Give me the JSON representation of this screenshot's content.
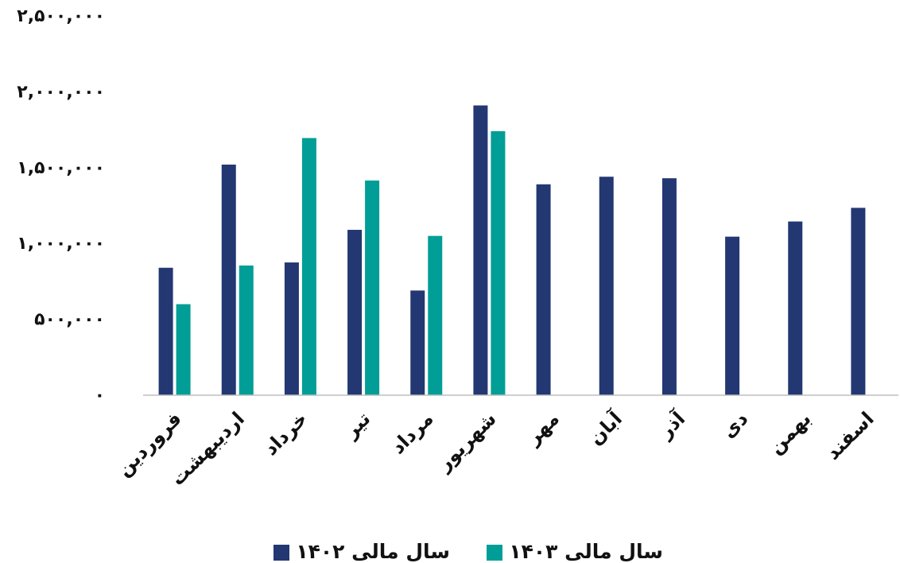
{
  "chart_data": {
    "type": "bar",
    "title": "",
    "xlabel": "",
    "ylabel": "",
    "ylim": [
      0,
      2500000
    ],
    "yticks": [
      0,
      500000,
      1000000,
      1500000,
      2000000,
      2500000
    ],
    "ytick_labels": [
      "۰",
      "۵۰۰,۰۰۰",
      "۱,۰۰۰,۰۰۰",
      "۱,۵۰۰,۰۰۰",
      "۲,۰۰۰,۰۰۰",
      "۲,۵۰۰,۰۰۰"
    ],
    "grid": false,
    "legend_position": "bottom",
    "categories": [
      "فروردین",
      "اردیبهشت",
      "خرداد",
      "تیر",
      "مرداد",
      "شهریور",
      "مهر",
      "آبان",
      "آذر",
      "دی",
      "بهمن",
      "اسفند"
    ],
    "series": [
      {
        "name": "سال مالی ۱۴۰۲",
        "color": "#233872",
        "values": [
          840000,
          1520000,
          875000,
          1090000,
          690000,
          1910000,
          1390000,
          1440000,
          1430000,
          1045000,
          1145000,
          1235000
        ]
      },
      {
        "name": "سال مالی ۱۴۰۳",
        "color": "#009e96",
        "values": [
          600000,
          855000,
          1695000,
          1415000,
          1050000,
          1740000,
          null,
          null,
          null,
          null,
          null,
          null
        ]
      }
    ]
  }
}
